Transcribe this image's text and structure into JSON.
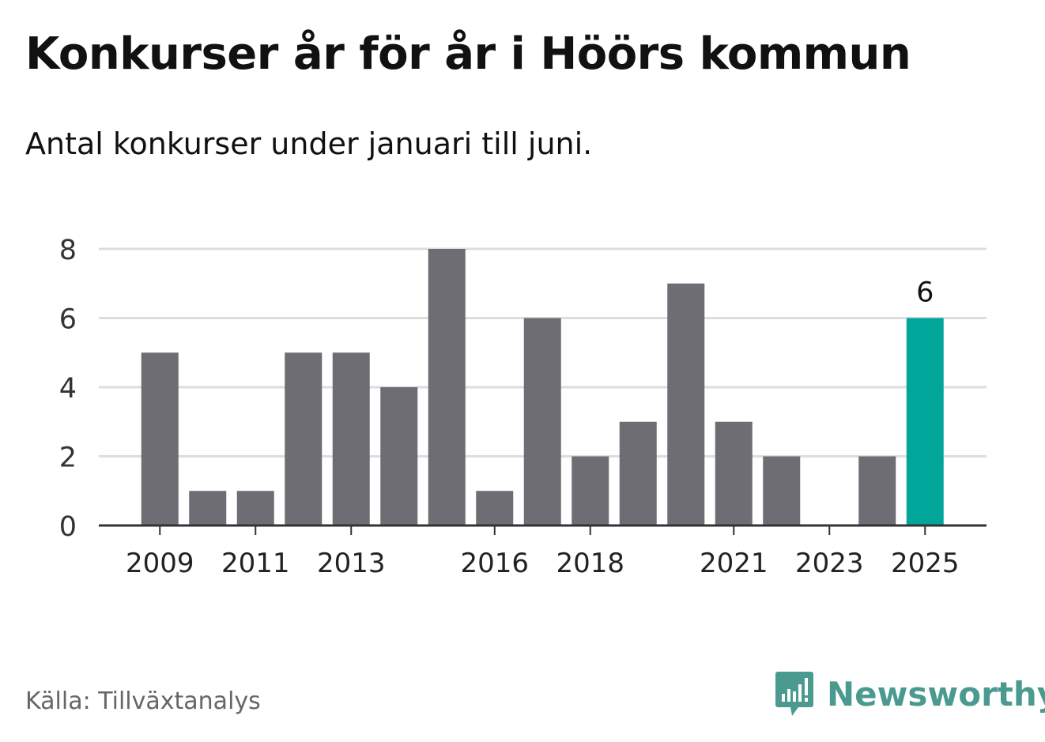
{
  "title": "Konkurser år för år i Höörs kommun",
  "subtitle": "Antal konkurser under januari till juni.",
  "source": "Källa: Tillväxtanalys",
  "brand": {
    "name": "Newsworthy",
    "icon": "newsworthy-logo-icon"
  },
  "colors": {
    "bar": "#6d6d73",
    "highlight": "#00a69a",
    "grid": "#dddddd",
    "axis": "#333333",
    "brand": "#4a9a90"
  },
  "chart_data": {
    "type": "bar",
    "categories": [
      "2009",
      "2010",
      "2011",
      "2012",
      "2013",
      "2014",
      "2015",
      "2016",
      "2017",
      "2018",
      "2019",
      "2020",
      "2021",
      "2022",
      "2023",
      "2024",
      "2025"
    ],
    "values": [
      5,
      1,
      1,
      5,
      5,
      4,
      8,
      1,
      6,
      2,
      3,
      7,
      3,
      2,
      0,
      2,
      6
    ],
    "x_tick_labels": [
      "2009",
      "2011",
      "2013",
      "2016",
      "2018",
      "2021",
      "2023",
      "2025"
    ],
    "y_ticks": [
      0,
      2,
      4,
      6,
      8
    ],
    "ylim": [
      0,
      8
    ],
    "highlight": {
      "category": "2025",
      "label": "6"
    },
    "grid": true,
    "legend": "none",
    "xlabel": "",
    "ylabel": ""
  }
}
